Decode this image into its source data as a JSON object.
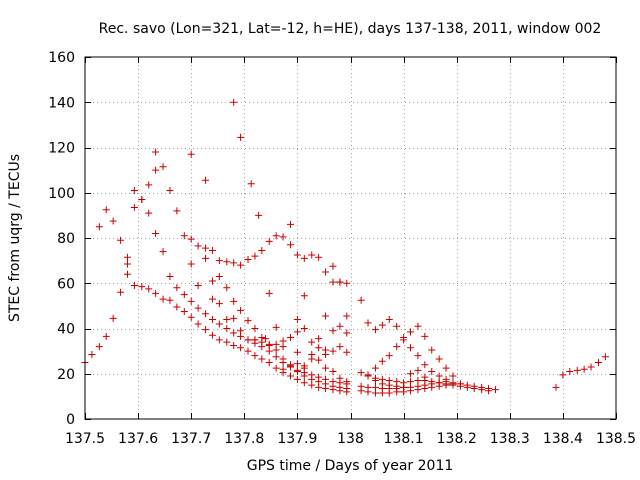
{
  "chart_data": {
    "type": "scatter",
    "title": "Rec. savo (Lon=321, Lat=-12, h=HE), days 137-138, 2011, window 002",
    "xlabel": "GPS time / Days of year 2011",
    "ylabel": "STEC from uqrg / TECUs",
    "xlim": [
      137.5,
      138.5
    ],
    "ylim": [
      0,
      160
    ],
    "xticks": [
      137.5,
      137.6,
      137.7,
      137.8,
      137.9,
      138.0,
      138.1,
      138.2,
      138.3,
      138.4,
      138.5
    ],
    "xtick_labels": [
      "137.5",
      "137.6",
      "137.7",
      "137.8",
      "137.9",
      "138",
      "138.1",
      "138.2",
      "138.3",
      "138.4",
      "138.5"
    ],
    "yticks": [
      0,
      20,
      40,
      60,
      80,
      100,
      120,
      140,
      160
    ],
    "ytick_labels": [
      "0",
      "20",
      "40",
      "60",
      "80",
      "100",
      "120",
      "140",
      "160"
    ],
    "grid": true,
    "marker": "+",
    "color": "#cc0000",
    "series": [
      {
        "name": "STEC",
        "points": [
          [
            137.5,
            25.0
          ],
          [
            137.513,
            28.5
          ],
          [
            137.527,
            32.0
          ],
          [
            137.54,
            36.5
          ],
          [
            137.553,
            44.5
          ],
          [
            137.567,
            56.0
          ],
          [
            137.58,
            64.0
          ],
          [
            137.593,
            59.0
          ],
          [
            137.607,
            58.5
          ],
          [
            137.62,
            57.5
          ],
          [
            137.633,
            55.5
          ],
          [
            137.647,
            53.0
          ],
          [
            137.66,
            52.5
          ],
          [
            137.673,
            49.5
          ],
          [
            137.687,
            47.5
          ],
          [
            137.7,
            45.0
          ],
          [
            137.713,
            42.0
          ],
          [
            137.727,
            39.5
          ],
          [
            137.74,
            37.0
          ],
          [
            137.753,
            35.0
          ],
          [
            137.767,
            34.0
          ],
          [
            137.78,
            32.5
          ],
          [
            137.793,
            31.5
          ],
          [
            137.807,
            30.0
          ],
          [
            137.82,
            28.0
          ],
          [
            137.833,
            26.5
          ],
          [
            137.847,
            25.0
          ],
          [
            137.86,
            22.5
          ],
          [
            137.873,
            20.5
          ],
          [
            137.887,
            19.0
          ],
          [
            137.9,
            17.5
          ],
          [
            137.913,
            16.0
          ],
          [
            137.927,
            15.0
          ],
          [
            137.94,
            14.0
          ],
          [
            137.953,
            13.5
          ],
          [
            137.967,
            13.0
          ],
          [
            137.98,
            12.5
          ],
          [
            137.993,
            12.0
          ],
          [
            137.527,
            85.0
          ],
          [
            137.54,
            92.5
          ],
          [
            137.553,
            87.5
          ],
          [
            137.567,
            79.0
          ],
          [
            137.58,
            71.5
          ],
          [
            137.593,
            93.5
          ],
          [
            137.607,
            97.0
          ],
          [
            137.62,
            91.0
          ],
          [
            137.633,
            82.0
          ],
          [
            137.647,
            74.0
          ],
          [
            137.66,
            63.0
          ],
          [
            137.673,
            58.0
          ],
          [
            137.687,
            55.0
          ],
          [
            137.7,
            52.0
          ],
          [
            137.713,
            49.0
          ],
          [
            137.727,
            46.5
          ],
          [
            137.74,
            44.0
          ],
          [
            137.753,
            42.0
          ],
          [
            137.767,
            40.0
          ],
          [
            137.78,
            38.0
          ],
          [
            137.793,
            36.5
          ],
          [
            137.807,
            35.0
          ],
          [
            137.82,
            33.5
          ],
          [
            137.833,
            32.0
          ],
          [
            137.847,
            30.0
          ],
          [
            137.86,
            27.5
          ],
          [
            137.873,
            25.0
          ],
          [
            137.887,
            23.0
          ],
          [
            137.9,
            21.5
          ],
          [
            137.913,
            20.5
          ],
          [
            137.927,
            19.5
          ],
          [
            137.94,
            18.5
          ],
          [
            137.953,
            17.5
          ],
          [
            137.967,
            16.5
          ],
          [
            137.98,
            16.0
          ],
          [
            137.993,
            15.5
          ],
          [
            137.58,
            68.5
          ],
          [
            137.593,
            101.0
          ],
          [
            137.607,
            97.0
          ],
          [
            137.62,
            103.5
          ],
          [
            137.633,
            110.0
          ],
          [
            137.647,
            111.5
          ],
          [
            137.66,
            101.0
          ],
          [
            137.673,
            92.0
          ],
          [
            137.687,
            81.0
          ],
          [
            137.7,
            79.5
          ],
          [
            137.713,
            76.5
          ],
          [
            137.727,
            75.5
          ],
          [
            137.74,
            74.5
          ],
          [
            137.753,
            70.0
          ],
          [
            137.767,
            69.5
          ],
          [
            137.78,
            69.0
          ],
          [
            137.793,
            68.0
          ],
          [
            137.807,
            70.5
          ],
          [
            137.82,
            72.0
          ],
          [
            137.833,
            74.5
          ],
          [
            137.847,
            78.5
          ],
          [
            137.86,
            81.0
          ],
          [
            137.873,
            80.5
          ],
          [
            137.887,
            77.0
          ],
          [
            137.9,
            72.5
          ],
          [
            137.913,
            71.0
          ],
          [
            137.927,
            72.5
          ],
          [
            137.94,
            71.5
          ],
          [
            137.953,
            65.0
          ],
          [
            137.967,
            60.5
          ],
          [
            137.98,
            60.5
          ],
          [
            137.993,
            60.0
          ],
          [
            137.633,
            118.0
          ],
          [
            137.7,
            117.0
          ],
          [
            137.727,
            105.5
          ],
          [
            137.78,
            140.0
          ],
          [
            137.793,
            124.5
          ],
          [
            137.813,
            104.0
          ],
          [
            137.827,
            90.0
          ],
          [
            137.847,
            55.5
          ],
          [
            137.887,
            86.0
          ],
          [
            137.9,
            44.0
          ],
          [
            137.913,
            54.5
          ],
          [
            137.953,
            45.5
          ],
          [
            137.967,
            67.5
          ],
          [
            137.98,
            60.5
          ],
          [
            137.993,
            45.5
          ],
          [
            138.02,
            52.5
          ],
          [
            137.7,
            68.5
          ],
          [
            137.713,
            59.0
          ],
          [
            137.727,
            71.0
          ],
          [
            137.74,
            61.0
          ],
          [
            137.753,
            63.0
          ],
          [
            137.767,
            58.0
          ],
          [
            137.78,
            52.0
          ],
          [
            137.793,
            48.0
          ],
          [
            137.807,
            43.5
          ],
          [
            137.82,
            40.0
          ],
          [
            137.833,
            36.0
          ],
          [
            137.847,
            33.0
          ],
          [
            137.86,
            30.5
          ],
          [
            137.873,
            26.5
          ],
          [
            137.887,
            23.5
          ],
          [
            137.9,
            21.0
          ],
          [
            137.913,
            19.0
          ],
          [
            137.927,
            17.5
          ],
          [
            137.94,
            16.5
          ],
          [
            137.953,
            15.5
          ],
          [
            137.967,
            14.5
          ],
          [
            137.98,
            14.0
          ],
          [
            137.993,
            13.5
          ],
          [
            137.74,
            53.0
          ],
          [
            137.753,
            51.0
          ],
          [
            137.767,
            44.0
          ],
          [
            137.78,
            44.5
          ],
          [
            137.793,
            39.0
          ],
          [
            137.807,
            35.0
          ],
          [
            137.82,
            35.0
          ],
          [
            137.833,
            34.0
          ],
          [
            137.847,
            32.5
          ],
          [
            137.86,
            33.0
          ],
          [
            137.873,
            34.5
          ],
          [
            137.887,
            36.0
          ],
          [
            137.9,
            38.5
          ],
          [
            137.913,
            40.0
          ],
          [
            137.927,
            34.0
          ],
          [
            137.94,
            31.5
          ],
          [
            137.953,
            28.5
          ],
          [
            137.967,
            30.0
          ],
          [
            137.98,
            32.0
          ],
          [
            137.993,
            29.5
          ],
          [
            137.86,
            40.5
          ],
          [
            137.887,
            24.0
          ],
          [
            137.9,
            24.5
          ],
          [
            137.913,
            22.5
          ],
          [
            137.927,
            26.5
          ],
          [
            137.94,
            26.0
          ],
          [
            137.953,
            22.5
          ],
          [
            137.967,
            21.0
          ],
          [
            137.98,
            18.0
          ],
          [
            137.993,
            16.5
          ],
          [
            137.82,
            35.0
          ],
          [
            137.84,
            35.5
          ],
          [
            137.873,
            22.0
          ],
          [
            137.913,
            23.5
          ],
          [
            137.953,
            30.5
          ],
          [
            137.967,
            39.0
          ],
          [
            137.98,
            41.0
          ],
          [
            137.993,
            38.0
          ],
          [
            137.927,
            28.5
          ],
          [
            137.94,
            35.5
          ],
          [
            137.9,
            29.5
          ],
          [
            137.873,
            32.0
          ],
          [
            138.02,
            20.5
          ],
          [
            138.033,
            19.0
          ],
          [
            138.047,
            18.0
          ],
          [
            138.06,
            17.5
          ],
          [
            138.073,
            17.0
          ],
          [
            138.087,
            16.5
          ],
          [
            138.1,
            16.0
          ],
          [
            138.113,
            16.5
          ],
          [
            138.127,
            17.0
          ],
          [
            138.14,
            17.0
          ],
          [
            138.153,
            16.5
          ],
          [
            138.167,
            16.0
          ],
          [
            138.18,
            15.5
          ],
          [
            138.193,
            15.5
          ],
          [
            138.207,
            15.5
          ],
          [
            138.22,
            15.0
          ],
          [
            138.233,
            14.5
          ],
          [
            138.247,
            14.0
          ],
          [
            138.26,
            13.5
          ],
          [
            138.273,
            13.0
          ],
          [
            138.02,
            12.5
          ],
          [
            138.033,
            12.0
          ],
          [
            138.047,
            11.5
          ],
          [
            138.06,
            11.5
          ],
          [
            138.073,
            11.5
          ],
          [
            138.087,
            12.0
          ],
          [
            138.1,
            12.0
          ],
          [
            138.113,
            12.5
          ],
          [
            138.127,
            13.0
          ],
          [
            138.14,
            13.5
          ],
          [
            138.153,
            14.0
          ],
          [
            138.167,
            14.5
          ],
          [
            138.18,
            15.0
          ],
          [
            138.193,
            15.0
          ],
          [
            138.207,
            14.5
          ],
          [
            138.22,
            14.0
          ],
          [
            138.233,
            13.5
          ],
          [
            138.247,
            13.0
          ],
          [
            138.26,
            12.5
          ],
          [
            138.02,
            14.5
          ],
          [
            138.033,
            14.0
          ],
          [
            138.047,
            14.0
          ],
          [
            138.06,
            13.5
          ],
          [
            138.073,
            13.5
          ],
          [
            138.087,
            13.5
          ],
          [
            138.1,
            14.0
          ],
          [
            138.113,
            14.0
          ],
          [
            138.127,
            14.5
          ],
          [
            138.14,
            15.0
          ],
          [
            138.153,
            15.5
          ],
          [
            138.167,
            16.0
          ],
          [
            138.18,
            16.5
          ],
          [
            138.193,
            16.0
          ],
          [
            138.207,
            15.5
          ],
          [
            138.033,
            42.5
          ],
          [
            138.047,
            39.5
          ],
          [
            138.06,
            41.5
          ],
          [
            138.073,
            44.0
          ],
          [
            138.087,
            41.0
          ],
          [
            138.1,
            36.0
          ],
          [
            138.113,
            31.5
          ],
          [
            138.127,
            28.0
          ],
          [
            138.14,
            24.0
          ],
          [
            138.153,
            21.0
          ],
          [
            138.167,
            19.0
          ],
          [
            138.18,
            17.5
          ],
          [
            138.047,
            22.5
          ],
          [
            138.06,
            25.5
          ],
          [
            138.073,
            28.0
          ],
          [
            138.087,
            32.0
          ],
          [
            138.1,
            35.0
          ],
          [
            138.113,
            38.5
          ],
          [
            138.127,
            41.0
          ],
          [
            138.14,
            36.5
          ],
          [
            138.153,
            30.5
          ],
          [
            138.167,
            26.5
          ],
          [
            138.18,
            22.5
          ],
          [
            138.193,
            19.0
          ],
          [
            138.033,
            19.5
          ],
          [
            138.047,
            17.0
          ],
          [
            138.06,
            15.5
          ],
          [
            138.073,
            15.0
          ],
          [
            138.087,
            14.5
          ],
          [
            138.1,
            14.0
          ],
          [
            138.113,
            20.0
          ],
          [
            138.127,
            21.5
          ],
          [
            138.14,
            18.5
          ],
          [
            138.387,
            14.0
          ],
          [
            138.4,
            19.5
          ],
          [
            138.413,
            21.0
          ],
          [
            138.427,
            21.5
          ],
          [
            138.44,
            22.0
          ],
          [
            138.453,
            23.0
          ],
          [
            138.467,
            25.0
          ],
          [
            138.48,
            27.5
          ]
        ]
      }
    ]
  }
}
